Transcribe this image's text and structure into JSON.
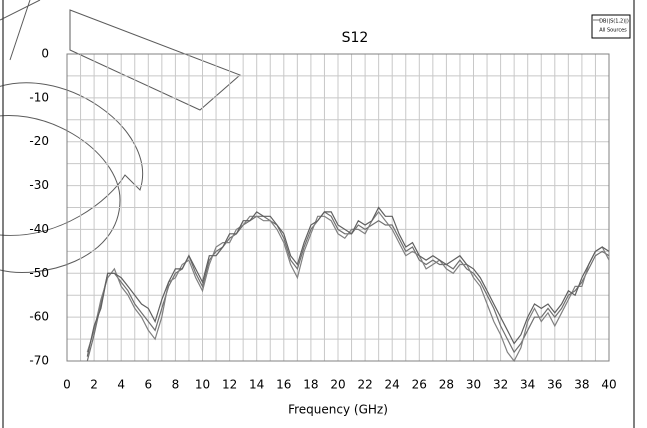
{
  "chart_data": {
    "type": "line",
    "title": "S12",
    "xlabel": "Frequency (GHz)",
    "legend_subtitle": "All Sources",
    "x": [
      1.5,
      2,
      2.5,
      3,
      3.5,
      4,
      4.5,
      5,
      5.5,
      6,
      6.5,
      7,
      7.5,
      8,
      8.5,
      9,
      9.5,
      10,
      10.5,
      11,
      11.5,
      12,
      12.5,
      13,
      13.5,
      14,
      14.5,
      15,
      15.5,
      16,
      16.5,
      17,
      17.5,
      18,
      18.5,
      19,
      19.5,
      20,
      20.5,
      21,
      21.5,
      22,
      22.5,
      23,
      23.5,
      24,
      24.5,
      25,
      25.5,
      26,
      26.5,
      27,
      27.5,
      28,
      28.5,
      29,
      29.5,
      30,
      30.5,
      31,
      31.5,
      32,
      32.5,
      33,
      33.5,
      34,
      34.5,
      35,
      35.5,
      36,
      36.5,
      37,
      37.5,
      38,
      38.5,
      39,
      39.5,
      40
    ],
    "series": [
      {
        "name": "DB(|S(1,2)|)",
        "color": "#707070",
        "values": [
          -70,
          -64,
          -57,
          -50,
          -50,
          -52,
          -54,
          -57,
          -59,
          -61,
          -63,
          -58,
          -53,
          -50,
          -49,
          -46,
          -50,
          -53,
          -47,
          -45,
          -44,
          -42,
          -41,
          -39,
          -38,
          -37,
          -37,
          -38,
          -39,
          -42,
          -47,
          -49,
          -44,
          -40,
          -38,
          -36,
          -37,
          -40,
          -41,
          -41,
          -39,
          -40,
          -39,
          -38,
          -39,
          -39,
          -42,
          -45,
          -44,
          -47,
          -48,
          -47,
          -48,
          -48,
          -49,
          -47,
          -49,
          -50,
          -52,
          -55,
          -58,
          -62,
          -65,
          -68,
          -66,
          -63,
          -60,
          -60,
          -58,
          -60,
          -58,
          -55,
          -54,
          -52,
          -49,
          -46,
          -45,
          -46
        ]
      },
      {
        "color": "#808080",
        "values": [
          -68,
          -63,
          -56,
          -51,
          -49,
          -53,
          -55,
          -58,
          -60,
          -63,
          -65,
          -60,
          -52,
          -51,
          -48,
          -47,
          -51,
          -54,
          -48,
          -44,
          -43,
          -43,
          -40,
          -39,
          -37,
          -37,
          -38,
          -38,
          -40,
          -43,
          -48,
          -51,
          -45,
          -41,
          -37,
          -37,
          -38,
          -41,
          -42,
          -40,
          -40,
          -41,
          -38,
          -36,
          -38,
          -40,
          -43,
          -46,
          -45,
          -46,
          -49,
          -48,
          -47,
          -49,
          -50,
          -48,
          -48,
          -51,
          -53,
          -57,
          -61,
          -64,
          -68,
          -70,
          -67,
          -61,
          -58,
          -61,
          -59,
          -62,
          -59,
          -56,
          -53,
          -53,
          -48,
          -45,
          -44,
          -47
        ]
      },
      {
        "color": "#606060",
        "values": [
          -69,
          -62,
          -58,
          -50,
          -50,
          -51,
          -53,
          -55,
          -57,
          -58,
          -61,
          -56,
          -52,
          -49,
          -49,
          -46,
          -49,
          -52,
          -46,
          -46,
          -44,
          -41,
          -41,
          -38,
          -38,
          -36,
          -37,
          -37,
          -39,
          -41,
          -46,
          -48,
          -43,
          -39,
          -38,
          -36,
          -36,
          -39,
          -40,
          -41,
          -38,
          -39,
          -38,
          -35,
          -37,
          -37,
          -41,
          -44,
          -43,
          -46,
          -47,
          -46,
          -47,
          -48,
          -47,
          -46,
          -48,
          -49,
          -51,
          -54,
          -57,
          -60,
          -63,
          -66,
          -64,
          -60,
          -57,
          -58,
          -57,
          -59,
          -57,
          -54,
          -55,
          -51,
          -48,
          -45,
          -44,
          -45
        ]
      }
    ],
    "xlim": [
      0,
      40
    ],
    "xticks": [
      0,
      2,
      4,
      6,
      8,
      10,
      12,
      14,
      16,
      18,
      20,
      22,
      24,
      26,
      28,
      30,
      32,
      34,
      36,
      38,
      40
    ],
    "xminor": [
      1,
      3,
      5,
      7,
      9,
      11,
      13,
      15,
      17,
      19,
      21,
      23,
      25,
      27,
      29,
      31,
      33,
      35,
      37,
      39
    ],
    "ylim": [
      -70,
      0
    ],
    "yticks": [
      -70,
      -60,
      -50,
      -40,
      -30,
      -20,
      -10,
      0
    ],
    "yminor": [
      -65,
      -55,
      -45,
      -35,
      -25,
      -15,
      -5
    ],
    "grid": true
  }
}
